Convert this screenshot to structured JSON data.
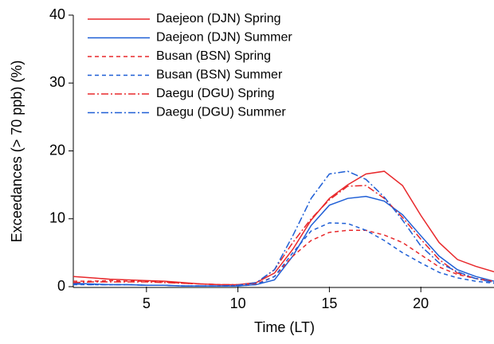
{
  "chart_data": {
    "type": "line",
    "x_label": "Time (LT)",
    "y_label": "Exceedances (> 70 ppb) (%)",
    "x": [
      1,
      2,
      3,
      4,
      5,
      6,
      7,
      8,
      9,
      10,
      11,
      12,
      13,
      14,
      15,
      16,
      17,
      18,
      19,
      20,
      21,
      22,
      23,
      24
    ],
    "xlim": [
      1,
      24
    ],
    "xticks": [
      5,
      10,
      15,
      20
    ],
    "ylim": [
      0,
      40
    ],
    "yticks": [
      0,
      10,
      20,
      30,
      40
    ],
    "legend": "upper-left",
    "series": [
      {
        "name": "Daejeon (DJN) Spring",
        "color": "#e8282b",
        "dash": "solid",
        "values": [
          1.5,
          1.3,
          1.1,
          1.0,
          0.9,
          0.8,
          0.6,
          0.4,
          0.3,
          0.3,
          0.6,
          2.0,
          5.5,
          9.8,
          13.0,
          15.0,
          16.6,
          17.0,
          14.9,
          10.5,
          6.5,
          4.0,
          3.0,
          2.2
        ]
      },
      {
        "name": "Daejeon (DJN) Summer",
        "color": "#1f5fd6",
        "dash": "solid",
        "values": [
          0.5,
          0.4,
          0.3,
          0.3,
          0.2,
          0.2,
          0.1,
          0.1,
          0.1,
          0.1,
          0.3,
          1.0,
          4.5,
          9.0,
          12.0,
          13.0,
          13.3,
          12.6,
          10.6,
          7.5,
          4.5,
          2.5,
          1.5,
          0.8
        ]
      },
      {
        "name": "Busan (BSN) Spring",
        "color": "#e8282b",
        "dash": "dashed",
        "values": [
          0.8,
          0.8,
          0.9,
          0.8,
          0.8,
          0.7,
          0.5,
          0.4,
          0.3,
          0.2,
          0.4,
          1.5,
          4.5,
          6.8,
          8.0,
          8.3,
          8.3,
          7.6,
          6.5,
          4.7,
          2.9,
          1.8,
          1.2,
          0.8
        ]
      },
      {
        "name": "Busan (BSN) Summer",
        "color": "#1f5fd6",
        "dash": "dashed",
        "values": [
          0.3,
          0.3,
          0.3,
          0.3,
          0.2,
          0.2,
          0.1,
          0.1,
          0.1,
          0.1,
          0.3,
          1.5,
          5.0,
          8.2,
          9.4,
          9.3,
          8.3,
          6.8,
          5.0,
          3.5,
          2.1,
          1.3,
          0.8,
          0.5
        ]
      },
      {
        "name": "Daegu (DGU) Spring",
        "color": "#e8282b",
        "dash": "dashdot",
        "values": [
          0.6,
          0.7,
          0.7,
          0.7,
          0.7,
          0.6,
          0.5,
          0.4,
          0.3,
          0.3,
          0.5,
          2.5,
          6.5,
          10.0,
          12.8,
          14.8,
          14.9,
          13.0,
          10.2,
          7.0,
          4.0,
          2.0,
          1.2,
          0.7
        ]
      },
      {
        "name": "Daegu (DGU) Summer",
        "color": "#1f5fd6",
        "dash": "dashdot",
        "values": [
          0.4,
          0.3,
          0.3,
          0.3,
          0.2,
          0.2,
          0.1,
          0.1,
          0.1,
          0.2,
          0.6,
          2.5,
          7.5,
          13.0,
          16.6,
          17.0,
          15.8,
          13.2,
          9.8,
          6.0,
          3.5,
          2.2,
          1.2,
          0.6
        ]
      }
    ]
  }
}
